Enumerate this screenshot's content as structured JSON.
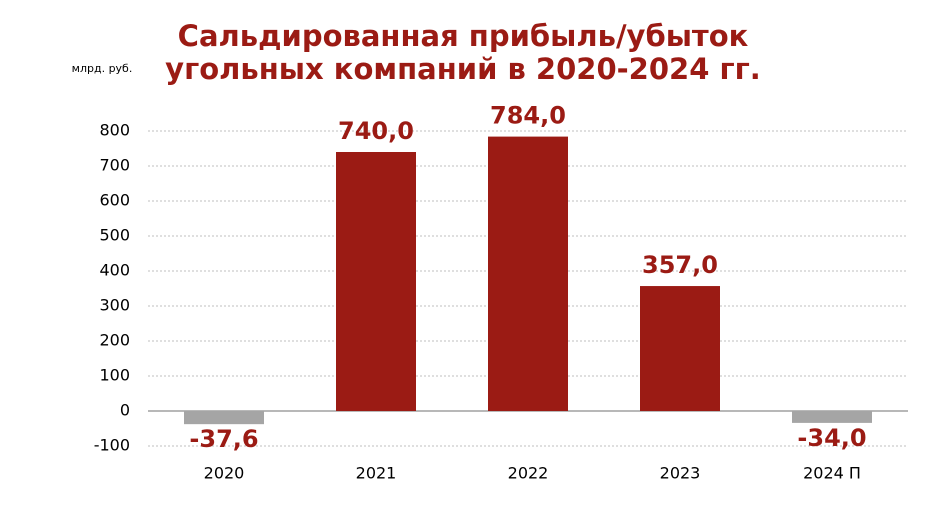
{
  "chart_data": {
    "type": "bar",
    "title": [
      "Сальдированная прибыль/убыток",
      "угольных компаний в 2020-2024 гг."
    ],
    "y_label": "млрд. руб.",
    "categories": [
      "2020",
      "2021",
      "2022",
      "2023",
      "2024 П"
    ],
    "values": [
      -37.6,
      740,
      784,
      357,
      -34
    ],
    "value_labels": [
      "-37,6",
      "740,0",
      "784,0",
      "357,0",
      "-34,0"
    ],
    "colors": [
      "#a5a5a5",
      "#9b1b14",
      "#9b1b14",
      "#9b1b14",
      "#a5a5a5"
    ],
    "ylim": [
      -100,
      800
    ],
    "yticks": [
      -100,
      0,
      100,
      200,
      300,
      400,
      500,
      600,
      700,
      800
    ],
    "grid": true
  }
}
